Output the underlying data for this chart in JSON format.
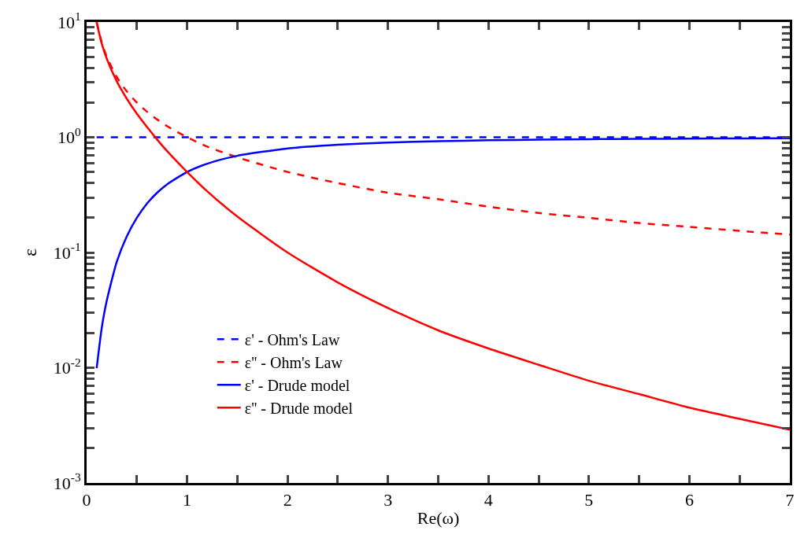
{
  "chart_data": {
    "type": "line",
    "xlabel": "Re(ω)",
    "ylabel": "ε",
    "x": [
      0.1,
      0.15,
      0.2,
      0.3,
      0.4,
      0.5,
      0.6,
      0.7,
      0.8,
      1,
      1.2,
      1.5,
      2,
      2.5,
      3,
      3.5,
      4,
      4.5,
      5,
      5.5,
      6,
      6.5,
      7
    ],
    "series": [
      {
        "name": "ε' - Ohm's Law",
        "color": "#0000ff",
        "line_style": "dashed",
        "x": [
          0.1,
          7
        ],
        "values": [
          1,
          1
        ]
      },
      {
        "name": "ε'' - Ohm's Law",
        "color": "#ff0000",
        "line_style": "dashed",
        "values": [
          10,
          6.67,
          5,
          3.33,
          2.5,
          2,
          1.67,
          1.43,
          1.25,
          1,
          0.83,
          0.67,
          0.5,
          0.4,
          0.33,
          0.29,
          0.25,
          0.22,
          0.2,
          0.18,
          0.167,
          0.154,
          0.143
        ]
      },
      {
        "name": "ε' - Drude model",
        "color": "#0000ff",
        "line_style": "solid",
        "values": [
          0.0099,
          0.022,
          0.038,
          0.083,
          0.138,
          0.2,
          0.265,
          0.329,
          0.39,
          0.5,
          0.59,
          0.69,
          0.8,
          0.862,
          0.9,
          0.925,
          0.941,
          0.953,
          0.962,
          0.968,
          0.973,
          0.977,
          0.98
        ]
      },
      {
        "name": "ε'' - Drude model",
        "color": "#ff0000",
        "line_style": "solid",
        "values": [
          9.9,
          6.52,
          4.81,
          3.06,
          2.16,
          1.6,
          1.23,
          0.96,
          0.76,
          0.5,
          0.34,
          0.205,
          0.1,
          0.055,
          0.033,
          0.0211,
          0.0147,
          0.0106,
          0.0077,
          0.0059,
          0.0045,
          0.0036,
          0.0029
        ]
      }
    ],
    "log": "y",
    "xlim": [
      0,
      7
    ],
    "xticks": [
      0,
      {
        "value": 0.5,
        "label": null
      },
      1,
      {
        "value": 1.5,
        "label": null
      },
      2,
      {
        "value": 2.5,
        "label": null
      },
      3,
      {
        "value": 3.5,
        "label": null
      },
      4,
      {
        "value": 4.5,
        "label": null
      },
      5,
      {
        "value": 5.5,
        "label": null
      },
      6,
      {
        "value": 6.5,
        "label": null
      },
      7
    ],
    "ylim": [
      0.001,
      10
    ],
    "yticks": [
      {
        "value": 0.001,
        "label": "10$^{-3}$"
      },
      {
        "value": 0.002,
        "label": null
      },
      {
        "value": 0.003,
        "label": null
      },
      {
        "value": 0.004,
        "label": null
      },
      {
        "value": 0.005,
        "label": null
      },
      {
        "value": 0.006,
        "label": null
      },
      {
        "value": 0.007,
        "label": null
      },
      {
        "value": 0.008,
        "label": null
      },
      {
        "value": 0.009,
        "label": null
      },
      {
        "value": 0.01,
        "label": "10$^{-2}$"
      },
      {
        "value": 0.02,
        "label": null
      },
      {
        "value": 0.03,
        "label": null
      },
      {
        "value": 0.04,
        "label": null
      },
      {
        "value": 0.05,
        "label": null
      },
      {
        "value": 0.06,
        "label": null
      },
      {
        "value": 0.07,
        "label": null
      },
      {
        "value": 0.08,
        "label": null
      },
      {
        "value": 0.09,
        "label": null
      },
      {
        "value": 0.1,
        "label": "10$^{-1}$"
      },
      {
        "value": 0.2,
        "label": null
      },
      {
        "value": 0.3,
        "label": null
      },
      {
        "value": 0.4,
        "label": null
      },
      {
        "value": 0.5,
        "label": null
      },
      {
        "value": 0.6,
        "label": null
      },
      {
        "value": 0.7,
        "label": null
      },
      {
        "value": 0.8,
        "label": null
      },
      {
        "value": 0.9,
        "label": null
      },
      {
        "value": 1,
        "label": "10$^{0}$"
      },
      {
        "value": 2,
        "label": null
      },
      {
        "value": 3,
        "label": null
      },
      {
        "value": 4,
        "label": null
      },
      {
        "value": 5,
        "label": null
      },
      {
        "value": 6,
        "label": null
      },
      {
        "value": 7,
        "label": null
      },
      {
        "value": 8,
        "label": null
      },
      {
        "value": 9,
        "label": null
      },
      {
        "value": 10,
        "label": "10$^{1}$"
      }
    ],
    "legend": "bottom left"
  }
}
